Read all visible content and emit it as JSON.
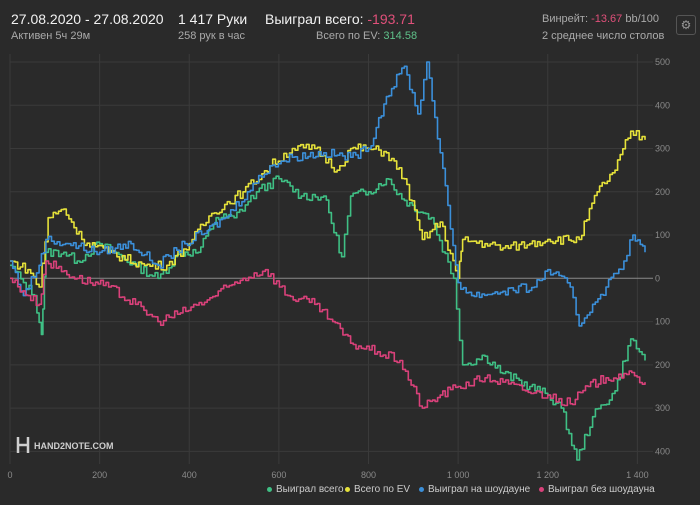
{
  "header": {
    "date_range": "27.08.2020 - 27.08.2020",
    "active": "Активен 5ч 29м",
    "hands": "1 417 Руки",
    "hands_per_hour": "258 рук в час",
    "won_total_label": "Выиграл всего:",
    "won_total_value": "-193.71",
    "ev_label": "Всего по EV:",
    "ev_value": "314.58",
    "winrate_label": "Винрейт:",
    "winrate_value": "-13.67",
    "winrate_unit": "bb/100",
    "tables": "2 среднее число столов"
  },
  "watermark": {
    "text": "HAND2NOTE.COM"
  },
  "chart_data": {
    "type": "line",
    "xlabel": "",
    "ylabel": "",
    "xlim": [
      0,
      1417
    ],
    "ylim": [
      -420,
      500
    ],
    "x_ticks": [
      0,
      200,
      400,
      600,
      800,
      1000,
      1200,
      1400
    ],
    "x_tick_labels": [
      "0",
      "200",
      "400",
      "600",
      "800",
      "1 000",
      "1 200",
      "1 400"
    ],
    "y_ticks": [
      500,
      400,
      300,
      200,
      100,
      0,
      -100,
      -200,
      -300,
      -400
    ],
    "y_tick_labels": [
      "500",
      "400",
      "300",
      "200",
      "100",
      "0",
      "100",
      "200",
      "300",
      "400"
    ],
    "grid": true,
    "legend_position": "bottom-right",
    "series": [
      {
        "name": "Выиграл всего",
        "color": "#3fbf84",
        "points": [
          [
            0,
            30
          ],
          [
            30,
            -10
          ],
          [
            55,
            -40
          ],
          [
            70,
            -130
          ],
          [
            80,
            60
          ],
          [
            120,
            60
          ],
          [
            150,
            40
          ],
          [
            200,
            80
          ],
          [
            280,
            30
          ],
          [
            330,
            0
          ],
          [
            380,
            60
          ],
          [
            420,
            60
          ],
          [
            460,
            140
          ],
          [
            500,
            140
          ],
          [
            550,
            200
          ],
          [
            600,
            230
          ],
          [
            650,
            190
          ],
          [
            700,
            190
          ],
          [
            740,
            50
          ],
          [
            760,
            190
          ],
          [
            800,
            200
          ],
          [
            840,
            230
          ],
          [
            880,
            180
          ],
          [
            940,
            140
          ],
          [
            990,
            0
          ],
          [
            1010,
            -200
          ],
          [
            1060,
            -180
          ],
          [
            1100,
            -220
          ],
          [
            1160,
            -250
          ],
          [
            1200,
            -270
          ],
          [
            1230,
            -300
          ],
          [
            1265,
            -420
          ],
          [
            1300,
            -320
          ],
          [
            1350,
            -260
          ],
          [
            1385,
            -140
          ],
          [
            1417,
            -190
          ]
        ]
      },
      {
        "name": "Всего по EV",
        "color": "#e6e23a",
        "points": [
          [
            0,
            40
          ],
          [
            40,
            20
          ],
          [
            65,
            -20
          ],
          [
            85,
            140
          ],
          [
            120,
            160
          ],
          [
            160,
            90
          ],
          [
            220,
            60
          ],
          [
            300,
            30
          ],
          [
            350,
            30
          ],
          [
            400,
            80
          ],
          [
            450,
            150
          ],
          [
            520,
            200
          ],
          [
            580,
            260
          ],
          [
            630,
            300
          ],
          [
            680,
            300
          ],
          [
            730,
            250
          ],
          [
            760,
            300
          ],
          [
            800,
            300
          ],
          [
            840,
            290
          ],
          [
            880,
            230
          ],
          [
            920,
            90
          ],
          [
            960,
            130
          ],
          [
            1000,
            0
          ],
          [
            1010,
            90
          ],
          [
            1060,
            80
          ],
          [
            1100,
            70
          ],
          [
            1160,
            80
          ],
          [
            1200,
            90
          ],
          [
            1270,
            90
          ],
          [
            1310,
            200
          ],
          [
            1350,
            250
          ],
          [
            1385,
            340
          ],
          [
            1417,
            320
          ]
        ]
      },
      {
        "name": "Выиграл на шоудауне",
        "color": "#3b8fd9",
        "points": [
          [
            0,
            40
          ],
          [
            30,
            -40
          ],
          [
            65,
            30
          ],
          [
            80,
            90
          ],
          [
            130,
            80
          ],
          [
            200,
            60
          ],
          [
            270,
            80
          ],
          [
            330,
            30
          ],
          [
            390,
            80
          ],
          [
            440,
            110
          ],
          [
            480,
            140
          ],
          [
            530,
            200
          ],
          [
            580,
            260
          ],
          [
            630,
            280
          ],
          [
            700,
            290
          ],
          [
            760,
            280
          ],
          [
            800,
            300
          ],
          [
            840,
            420
          ],
          [
            880,
            490
          ],
          [
            910,
            380
          ],
          [
            930,
            500
          ],
          [
            960,
            290
          ],
          [
            1000,
            -10
          ],
          [
            1030,
            -40
          ],
          [
            1100,
            -30
          ],
          [
            1170,
            -20
          ],
          [
            1200,
            20
          ],
          [
            1250,
            -20
          ],
          [
            1270,
            -110
          ],
          [
            1300,
            -60
          ],
          [
            1330,
            -20
          ],
          [
            1370,
            40
          ],
          [
            1390,
            100
          ],
          [
            1417,
            60
          ]
        ]
      },
      {
        "name": "Выиграл без шоудауна",
        "color": "#d9417a",
        "points": [
          [
            0,
            0
          ],
          [
            40,
            -40
          ],
          [
            65,
            -60
          ],
          [
            80,
            40
          ],
          [
            150,
            0
          ],
          [
            220,
            -20
          ],
          [
            280,
            -60
          ],
          [
            330,
            -100
          ],
          [
            380,
            -80
          ],
          [
            440,
            -50
          ],
          [
            520,
            0
          ],
          [
            570,
            20
          ],
          [
            620,
            -40
          ],
          [
            680,
            -60
          ],
          [
            720,
            -100
          ],
          [
            760,
            -150
          ],
          [
            820,
            -170
          ],
          [
            870,
            -190
          ],
          [
            920,
            -300
          ],
          [
            960,
            -270
          ],
          [
            1000,
            -250
          ],
          [
            1060,
            -230
          ],
          [
            1100,
            -240
          ],
          [
            1150,
            -260
          ],
          [
            1200,
            -270
          ],
          [
            1250,
            -290
          ],
          [
            1290,
            -250
          ],
          [
            1330,
            -230
          ],
          [
            1370,
            -220
          ],
          [
            1417,
            -240
          ]
        ]
      }
    ]
  }
}
